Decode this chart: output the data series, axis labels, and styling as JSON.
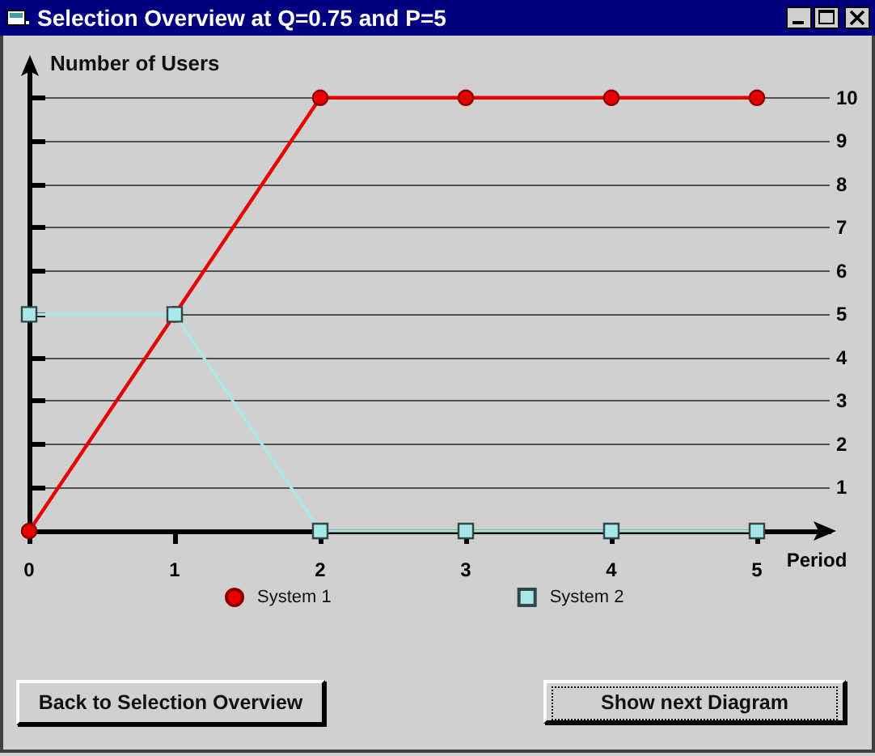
{
  "chart_data": {
    "type": "line",
    "title": "Selection Overview at Q=0.75 and P=5",
    "xlabel": "Period",
    "ylabel": "Number of Users",
    "x": [
      0,
      1,
      2,
      3,
      4,
      5
    ],
    "series": [
      {
        "name": "System 1",
        "color": "#e80000",
        "marker": "circle",
        "values": [
          0,
          5,
          10,
          10,
          10,
          10
        ]
      },
      {
        "name": "System 2",
        "color": "#a8e8e8",
        "marker": "square",
        "values": [
          5,
          5,
          0,
          0,
          0,
          0
        ]
      }
    ],
    "xlim": [
      0,
      5.5
    ],
    "xticks": [
      0,
      1,
      2,
      3,
      4,
      5
    ],
    "ylim": [
      0,
      10.8
    ],
    "yticks": [
      1,
      2,
      3,
      4,
      5,
      6,
      7,
      8,
      9,
      10
    ],
    "grid": "y",
    "legend": "bottom",
    "line_style": "solid",
    "annotations": [
      "Back to Selection Overview",
      "Show next Diagram"
    ]
  }
}
